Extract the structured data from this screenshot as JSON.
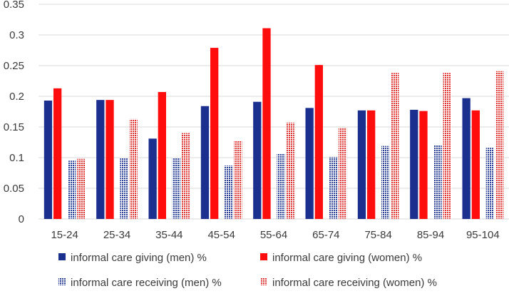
{
  "chart_data": {
    "type": "bar",
    "title": "",
    "xlabel": "",
    "ylabel": "",
    "categories": [
      "15-24",
      "25-34",
      "35-44",
      "45-54",
      "55-64",
      "65-74",
      "75-84",
      "85-94",
      "95-104"
    ],
    "ylim": [
      0,
      0.35
    ],
    "yticks": [
      0,
      0.05,
      0.1,
      0.15,
      0.2,
      0.25,
      0.3,
      0.35
    ],
    "ytick_labels": [
      "0",
      "0.05",
      "0.1",
      "0.15",
      "0.2",
      "0.25",
      "0.3",
      "0.35"
    ],
    "grid": "horizontal",
    "legend_position": "bottom",
    "series": [
      {
        "name": "informal care giving (men) %",
        "color": "#1b2f8f",
        "pattern": "solid",
        "values": [
          0.193,
          0.194,
          0.131,
          0.184,
          0.191,
          0.181,
          0.177,
          0.178,
          0.197
        ]
      },
      {
        "name": "informal care giving (women) %",
        "color": "#ff0d0d",
        "pattern": "solid",
        "values": [
          0.213,
          0.194,
          0.207,
          0.279,
          0.311,
          0.251,
          0.177,
          0.176,
          0.177
        ]
      },
      {
        "name": "informal care receiving (men) %",
        "color": "#2a3f9a",
        "pattern": "checker",
        "values": [
          0.095,
          0.1,
          0.1,
          0.087,
          0.107,
          0.101,
          0.119,
          0.12,
          0.116
        ]
      },
      {
        "name": "informal care receiving (women) %",
        "color": "#e23333",
        "pattern": "checker",
        "values": [
          0.098,
          0.163,
          0.14,
          0.127,
          0.157,
          0.149,
          0.238,
          0.238,
          0.241
        ]
      }
    ]
  }
}
